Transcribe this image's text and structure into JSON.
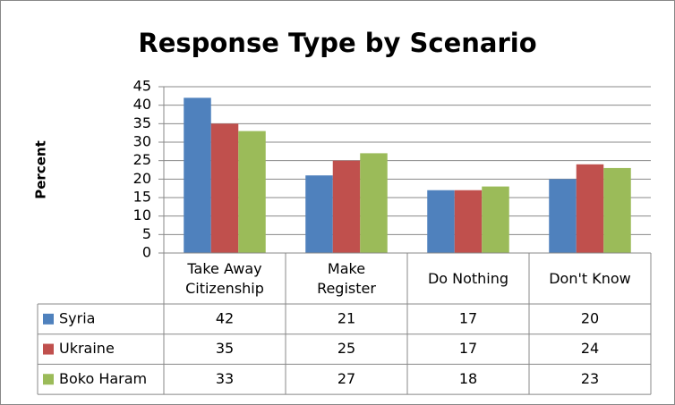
{
  "chart_data": {
    "type": "bar",
    "title": "Response Type by Scenario",
    "y_label": "Percent",
    "categories": [
      "Take Away Citizenship",
      "Make Register",
      "Do Nothing",
      "Don't Know"
    ],
    "series": [
      {
        "name": "Syria",
        "color": "#4f81bd",
        "values": [
          42,
          21,
          17,
          20
        ]
      },
      {
        "name": "Ukraine",
        "color": "#c0504d",
        "values": [
          35,
          25,
          17,
          24
        ]
      },
      {
        "name": "Boko Haram",
        "color": "#9bbb59",
        "values": [
          33,
          27,
          18,
          23
        ]
      }
    ],
    "ylim": [
      0,
      45
    ],
    "yticks": [
      0,
      5,
      10,
      15,
      20,
      25,
      30,
      35,
      40,
      45
    ],
    "grid": true,
    "data_table": true
  }
}
